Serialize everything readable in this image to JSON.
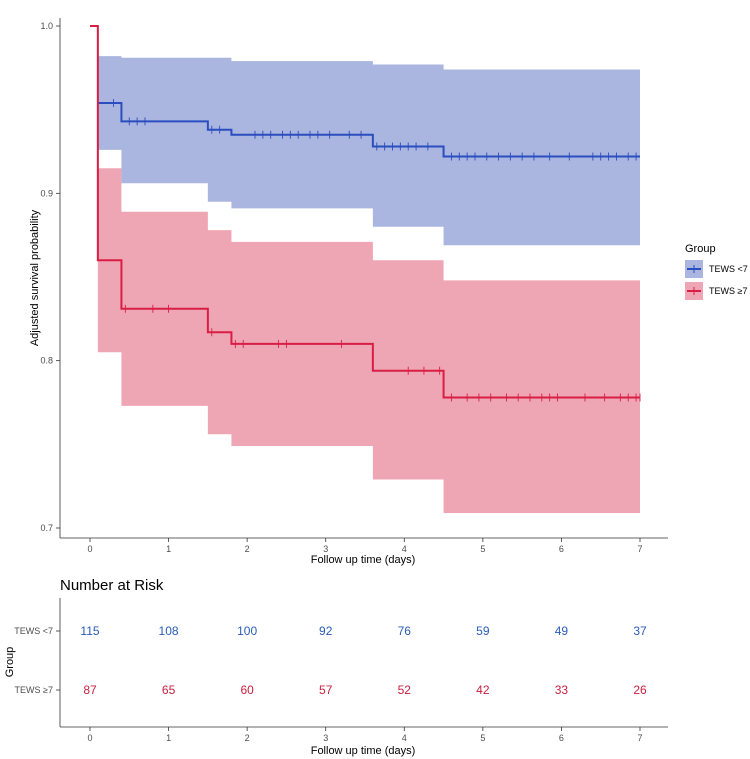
{
  "chart_data": {
    "type": "line",
    "subtype": "kaplan-meier-adjusted-survival",
    "xlabel": "Follow up time (days)",
    "ylabel": "Adjusted survival probability",
    "xlim": [
      0,
      7
    ],
    "ylim": [
      0.7,
      1.0
    ],
    "x_ticks": [
      "0",
      "1",
      "2",
      "3",
      "4",
      "5",
      "6",
      "7"
    ],
    "y_ticks": [
      "0.7",
      "0.8",
      "0.9",
      "1.0"
    ],
    "legend_title": "Group",
    "legend_position": "right",
    "series": [
      {
        "name": "TEWS <7",
        "color": "#2a4dbf",
        "ci_color": "#aab6e0",
        "steps": [
          [
            0.1,
            0.954
          ],
          [
            0.4,
            0.943
          ],
          [
            1.5,
            0.938
          ],
          [
            1.8,
            0.935
          ],
          [
            3.6,
            0.928
          ],
          [
            4.5,
            0.922
          ],
          [
            7.0,
            0.922
          ]
        ],
        "ci_upper": [
          [
            0.1,
            0.982
          ],
          [
            0.4,
            0.981
          ],
          [
            1.5,
            0.981
          ],
          [
            1.8,
            0.979
          ],
          [
            3.6,
            0.977
          ],
          [
            4.5,
            0.974
          ],
          [
            7.0,
            0.974
          ]
        ],
        "ci_lower": [
          [
            0.1,
            0.926
          ],
          [
            0.4,
            0.906
          ],
          [
            1.5,
            0.895
          ],
          [
            1.8,
            0.891
          ],
          [
            3.6,
            0.88
          ],
          [
            4.5,
            0.869
          ],
          [
            7.0,
            0.869
          ]
        ],
        "censor": [
          0.3,
          0.5,
          0.6,
          0.7,
          1.55,
          1.65,
          2.1,
          2.2,
          2.3,
          2.45,
          2.55,
          2.65,
          2.8,
          2.9,
          3.05,
          3.3,
          3.45,
          3.65,
          3.75,
          3.85,
          3.95,
          4.05,
          4.15,
          4.3,
          4.6,
          4.7,
          4.8,
          4.9,
          5.05,
          5.2,
          5.35,
          5.5,
          5.65,
          5.85,
          6.1,
          6.4,
          6.5,
          6.6,
          6.7,
          6.85,
          6.95
        ]
      },
      {
        "name": "TEWS ≥7",
        "color": "#d81e45",
        "ci_color": "#efa6b4",
        "steps": [
          [
            0.0,
            1.0
          ],
          [
            0.1,
            0.86
          ],
          [
            0.4,
            0.831
          ],
          [
            1.5,
            0.817
          ],
          [
            1.8,
            0.81
          ],
          [
            3.6,
            0.794
          ],
          [
            4.5,
            0.778
          ],
          [
            7.0,
            0.778
          ]
        ],
        "ci_upper": [
          [
            0.1,
            0.915
          ],
          [
            0.4,
            0.889
          ],
          [
            1.5,
            0.878
          ],
          [
            1.8,
            0.871
          ],
          [
            3.6,
            0.86
          ],
          [
            4.5,
            0.848
          ],
          [
            7.0,
            0.848
          ]
        ],
        "ci_lower": [
          [
            0.1,
            0.805
          ],
          [
            0.4,
            0.773
          ],
          [
            1.5,
            0.756
          ],
          [
            1.8,
            0.749
          ],
          [
            3.6,
            0.729
          ],
          [
            4.5,
            0.709
          ],
          [
            7.0,
            0.709
          ]
        ],
        "censor": [
          0.45,
          0.8,
          1.0,
          1.55,
          1.85,
          1.95,
          2.4,
          2.5,
          3.2,
          4.05,
          4.25,
          4.45,
          4.6,
          4.8,
          4.95,
          5.1,
          5.3,
          5.45,
          5.6,
          5.75,
          5.85,
          5.95,
          6.3,
          6.55,
          6.75,
          6.85,
          6.95,
          7.0
        ]
      }
    ],
    "risk_table": {
      "title": "Number at Risk",
      "ylabel": "Group",
      "xlabel": "Follow up time (days)",
      "times": [
        0,
        1,
        2,
        3,
        4,
        5,
        6,
        7
      ],
      "rows": [
        {
          "label": "TEWS <7",
          "color": "#2a5cb8",
          "values": [
            "115",
            "108",
            "100",
            "92",
            "76",
            "59",
            "49",
            "37"
          ]
        },
        {
          "label": "TEWS ≥7",
          "color": "#c8203f",
          "values": [
            "87",
            "65",
            "60",
            "57",
            "52",
            "42",
            "33",
            "26"
          ]
        }
      ]
    }
  }
}
